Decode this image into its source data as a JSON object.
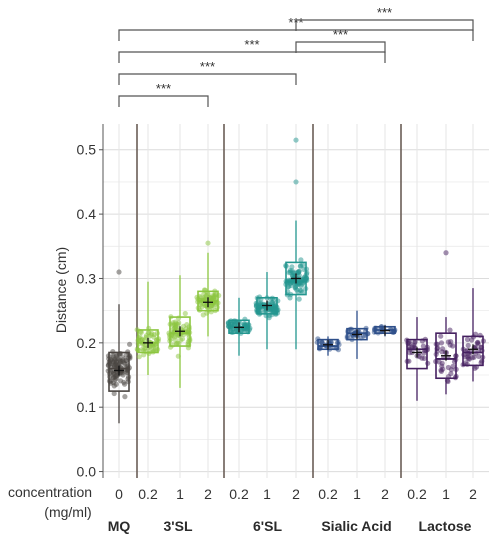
{
  "chart_data": {
    "type": "box",
    "xlabel": "concentration (mg/ml)",
    "xlabel_lines": [
      "concentration",
      "(mg/ml)"
    ],
    "ylabel": "Distance (cm)",
    "ylim": [
      -0.01,
      0.54
    ],
    "yticks": [
      0.0,
      0.1,
      0.2,
      0.3,
      0.4,
      0.5
    ],
    "ytick_labels": [
      "0.0",
      "0.1",
      "0.2",
      "0.3",
      "0.4",
      "0.5"
    ],
    "grid": true,
    "groups": [
      {
        "label": "MQ",
        "color": "#4a4541"
      },
      {
        "label": "3'SL",
        "color": "#8cc63f"
      },
      {
        "label": "6'SL",
        "color": "#23968f"
      },
      {
        "label": "Sialic Acid",
        "color": "#2e4f8a"
      },
      {
        "label": "Lactose",
        "color": "#452060"
      }
    ],
    "boxes": [
      {
        "group": "MQ",
        "concentration": "0",
        "color": "#4a4541",
        "min": 0.075,
        "q1": 0.125,
        "median": 0.16,
        "q3": 0.185,
        "max": 0.26,
        "mean": 0.157,
        "n": 110,
        "outliers": [
          0.31
        ]
      },
      {
        "group": "3'SL",
        "concentration": "0.2",
        "color": "#8cc63f",
        "min": 0.15,
        "q1": 0.185,
        "median": 0.2,
        "q3": 0.22,
        "max": 0.295,
        "mean": 0.2,
        "n": 60,
        "outliers": []
      },
      {
        "group": "3'SL",
        "concentration": "1",
        "color": "#8cc63f",
        "min": 0.13,
        "q1": 0.195,
        "median": 0.215,
        "q3": 0.24,
        "max": 0.305,
        "mean": 0.218,
        "n": 70,
        "outliers": []
      },
      {
        "group": "3'SL",
        "concentration": "2",
        "color": "#8cc63f",
        "min": 0.21,
        "q1": 0.25,
        "median": 0.265,
        "q3": 0.28,
        "max": 0.34,
        "mean": 0.263,
        "n": 70,
        "outliers": [
          0.355
        ]
      },
      {
        "group": "6'SL",
        "concentration": "0.2",
        "color": "#23968f",
        "min": 0.18,
        "q1": 0.215,
        "median": 0.225,
        "q3": 0.235,
        "max": 0.27,
        "mean": 0.224,
        "n": 60,
        "outliers": []
      },
      {
        "group": "6'SL",
        "concentration": "1",
        "color": "#23968f",
        "min": 0.19,
        "q1": 0.245,
        "median": 0.255,
        "q3": 0.27,
        "max": 0.31,
        "mean": 0.258,
        "n": 80,
        "outliers": []
      },
      {
        "group": "6'SL",
        "concentration": "2",
        "color": "#23968f",
        "min": 0.19,
        "q1": 0.275,
        "median": 0.295,
        "q3": 0.325,
        "max": 0.39,
        "mean": 0.3,
        "n": 90,
        "outliers": [
          0.45,
          0.515
        ]
      },
      {
        "group": "Sialic Acid",
        "concentration": "0.2",
        "color": "#2e4f8a",
        "min": 0.18,
        "q1": 0.19,
        "median": 0.195,
        "q3": 0.205,
        "max": 0.21,
        "mean": 0.197,
        "n": 25,
        "outliers": []
      },
      {
        "group": "Sialic Acid",
        "concentration": "1",
        "color": "#2e4f8a",
        "min": 0.175,
        "q1": 0.205,
        "median": 0.215,
        "q3": 0.222,
        "max": 0.25,
        "mean": 0.213,
        "n": 30,
        "outliers": []
      },
      {
        "group": "Sialic Acid",
        "concentration": "2",
        "color": "#2e4f8a",
        "min": 0.21,
        "q1": 0.215,
        "median": 0.22,
        "q3": 0.225,
        "max": 0.228,
        "mean": 0.219,
        "n": 20,
        "outliers": []
      },
      {
        "group": "Lactose",
        "concentration": "0.2",
        "color": "#452060",
        "min": 0.11,
        "q1": 0.16,
        "median": 0.19,
        "q3": 0.205,
        "max": 0.24,
        "mean": 0.185,
        "n": 30,
        "outliers": []
      },
      {
        "group": "Lactose",
        "concentration": "1",
        "color": "#452060",
        "min": 0.12,
        "q1": 0.145,
        "median": 0.175,
        "q3": 0.215,
        "max": 0.24,
        "mean": 0.18,
        "n": 40,
        "outliers": [
          0.34
        ]
      },
      {
        "group": "Lactose",
        "concentration": "2",
        "color": "#452060",
        "min": 0.14,
        "q1": 0.165,
        "median": 0.185,
        "q3": 0.21,
        "max": 0.285,
        "mean": 0.19,
        "n": 40,
        "outliers": []
      }
    ],
    "significance": [
      {
        "from": 0,
        "to": 3,
        "label": "***"
      },
      {
        "from": 0,
        "to": 6,
        "label": "***"
      },
      {
        "from": 0,
        "to": 9,
        "label": "***"
      },
      {
        "from": 0,
        "to": 12,
        "label": "***"
      },
      {
        "from": 6,
        "to": 9,
        "label": "***"
      },
      {
        "from": 6,
        "to": 12,
        "label": "***"
      }
    ]
  }
}
